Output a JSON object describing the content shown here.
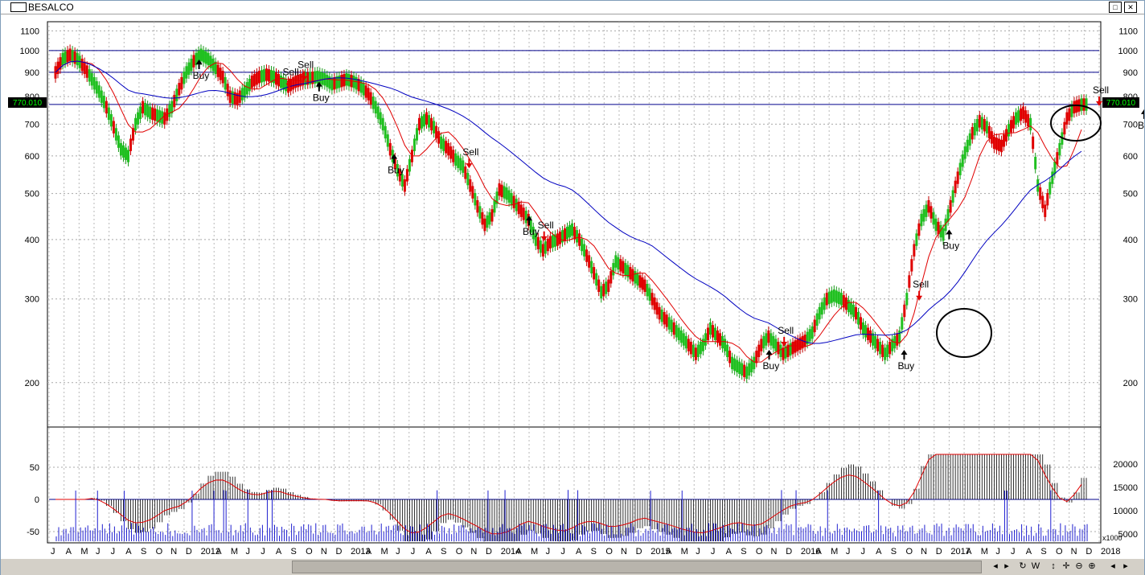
{
  "window": {
    "title": "BESALCO"
  },
  "price_axis": {
    "ticks": [
      "1100",
      "1000",
      "900",
      "800",
      "700",
      "600",
      "500",
      "400",
      "300",
      "200"
    ],
    "current_price": "770.010"
  },
  "indicator_axis": {
    "left_ticks": [
      "50",
      "0",
      "-50"
    ],
    "right_ticks": [
      "20000",
      "15000",
      "10000",
      "5000"
    ],
    "multiplier": "x1000"
  },
  "time_axis": {
    "labels": [
      "J",
      "A",
      "M",
      "J",
      "J",
      "A",
      "S",
      "O",
      "N",
      "D",
      "2012",
      "A",
      "M",
      "J",
      "J",
      "A",
      "S",
      "O",
      "N",
      "D",
      "2013",
      "A",
      "M",
      "J",
      "J",
      "A",
      "S",
      "O",
      "N",
      "D",
      "2014",
      "A",
      "M",
      "J",
      "J",
      "A",
      "S",
      "O",
      "N",
      "D",
      "2015",
      "A",
      "M",
      "J",
      "J",
      "A",
      "S",
      "O",
      "N",
      "D",
      "2016",
      "A",
      "M",
      "J",
      "J",
      "A",
      "S",
      "O",
      "N",
      "D",
      "2017",
      "A",
      "M",
      "J",
      "J",
      "A",
      "S",
      "O",
      "N",
      "D",
      "2018"
    ]
  },
  "signals": {
    "buy": "Buy",
    "sell": "Sell"
  },
  "chart_data": {
    "type": "line",
    "title": "BESALCO",
    "y_scale": "log",
    "ylim": [
      160,
      1150
    ],
    "levels": [
      1000,
      900,
      770.01
    ],
    "series": [
      {
        "values": [
          900,
          960,
          980,
          960,
          920,
          870,
          820,
          760,
          690,
          620,
          600,
          700,
          760,
          740,
          730,
          720,
          760,
          830,
          900,
          950,
          980,
          960,
          920,
          880,
          800,
          790,
          820,
          860,
          880,
          890,
          880,
          860,
          840,
          860,
          870,
          875,
          880,
          870,
          850,
          860,
          870,
          860,
          840,
          810,
          760,
          700,
          620,
          560,
          520,
          600,
          700,
          720,
          690,
          640,
          620,
          590,
          570,
          520,
          470,
          430,
          450,
          510,
          500,
          480,
          460,
          440,
          400,
          380,
          395,
          400,
          410,
          420,
          400,
          370,
          340,
          310,
          320,
          360,
          350,
          340,
          330,
          320,
          300,
          280,
          270,
          260,
          250,
          240,
          230,
          240,
          260,
          250,
          240,
          220,
          215,
          210,
          220,
          240,
          250,
          240,
          230,
          235,
          240,
          245,
          255,
          280,
          300,
          305,
          300,
          290,
          280,
          260,
          250,
          240,
          230,
          240,
          250,
          300,
          380,
          440,
          470,
          430,
          410,
          470,
          540,
          610,
          670,
          710,
          690,
          640,
          630,
          680,
          720,
          740,
          700,
          520,
          460,
          540,
          620,
          720,
          760,
          770
        ]
      }
    ],
    "signals": [
      {
        "type": "Buy",
        "date": "2011-11"
      },
      {
        "type": "Sell",
        "date": "2012-05"
      },
      {
        "type": "Sell",
        "date": "2012-06"
      },
      {
        "type": "Buy",
        "date": "2012-07"
      },
      {
        "type": "Buy",
        "date": "2012-12"
      },
      {
        "type": "Sell",
        "date": "2013-05"
      },
      {
        "type": "Buy",
        "date": "2013-09"
      },
      {
        "type": "Sell",
        "date": "2013-10"
      },
      {
        "type": "Buy",
        "date": "2015-01"
      },
      {
        "type": "Sell",
        "date": "2015-02"
      },
      {
        "type": "Buy",
        "date": "2015-10"
      },
      {
        "type": "Sell",
        "date": "2015-11"
      },
      {
        "type": "Buy",
        "date": "2016-01"
      },
      {
        "type": "Sell",
        "date": "2016-11"
      },
      {
        "type": "Buy",
        "date": "2017-02"
      },
      {
        "type": "Sell",
        "date": "2017-09"
      },
      {
        "type": "Buy",
        "date": "2018-01"
      }
    ]
  },
  "icons": [
    "window-icon",
    "minimize-icon",
    "maximize-icon",
    "close-icon",
    "scroll-left-icon",
    "scroll-right-icon",
    "zoom-out-icon",
    "zoom-in-icon",
    "pan-icon"
  ]
}
